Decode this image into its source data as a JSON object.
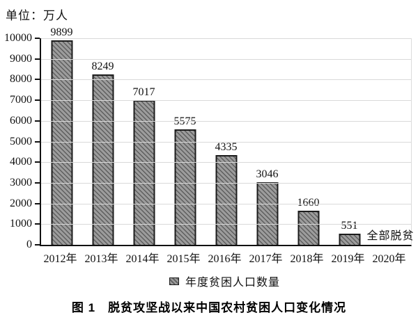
{
  "unit_label": "单位：万人",
  "caption": "图 1　脱贫攻坚战以来中国农村贫困人口变化情况",
  "annotation_label": "全部脱贫",
  "chart_data": {
    "type": "bar",
    "title": "脱贫攻坚战以来中国农村贫困人口变化情况",
    "unit": "万人",
    "categories": [
      "2012年",
      "2013年",
      "2014年",
      "2015年",
      "2016年",
      "2017年",
      "2018年",
      "2019年",
      "2020年"
    ],
    "values": [
      9899,
      8249,
      7017,
      5575,
      4335,
      3046,
      1660,
      551,
      null
    ],
    "bar_labels": [
      "9899",
      "8249",
      "7017",
      "5575",
      "4335",
      "3046",
      "1660",
      "551",
      ""
    ],
    "annotations": [
      {
        "category": "2020年",
        "text": "全部脱贫"
      }
    ],
    "ylim": [
      0,
      10000
    ],
    "yticks": [
      0,
      1000,
      2000,
      3000,
      4000,
      5000,
      6000,
      7000,
      8000,
      9000,
      10000
    ],
    "grid": true,
    "legend_label": "年度贫困人口数量",
    "legend_position": "bottom",
    "colors": {
      "bar_fill": "#9c9c9c",
      "bar_hatch": "#5e5e5e",
      "bar_border": "#1c1c1c",
      "gridline": "#d9d9d9",
      "axis": "#111111",
      "text": "#111111"
    }
  }
}
